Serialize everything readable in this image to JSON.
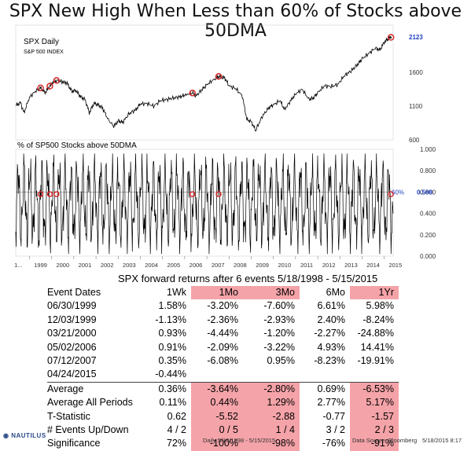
{
  "title": "SPX New High When Less than 60% of Stocks above 50DMA",
  "chart_data": [
    {
      "type": "line",
      "label": "SPX Daily",
      "sublabel": "S&P 500 INDEX",
      "ylim": [
        600,
        2300
      ],
      "yticks": [
        "2123",
        "1600",
        "1100",
        "600"
      ],
      "last_value_label": "2123",
      "x": [
        1998.38,
        1998.6,
        1998.75,
        1999.0,
        1999.3,
        1999.5,
        1999.7,
        1999.93,
        2000.05,
        2000.22,
        2000.5,
        2000.7,
        2000.9,
        2001.1,
        2001.3,
        2001.5,
        2001.7,
        2001.9,
        2002.1,
        2002.3,
        2002.55,
        2002.8,
        2003.0,
        2003.2,
        2003.5,
        2003.8,
        2004.0,
        2004.3,
        2004.6,
        2004.9,
        2005.2,
        2005.5,
        2005.8,
        2006.0,
        2006.33,
        2006.5,
        2006.8,
        2007.0,
        2007.3,
        2007.53,
        2007.8,
        2008.0,
        2008.3,
        2008.6,
        2008.8,
        2009.0,
        2009.2,
        2009.5,
        2009.8,
        2010.0,
        2010.3,
        2010.5,
        2010.8,
        2011.0,
        2011.3,
        2011.6,
        2011.8,
        2012.0,
        2012.3,
        2012.6,
        2012.9,
        2013.2,
        2013.5,
        2013.8,
        2014.0,
        2014.3,
        2014.6,
        2014.8,
        2015.0,
        2015.2,
        2015.32
      ],
      "y": [
        1110,
        1150,
        1000,
        1230,
        1330,
        1370,
        1300,
        1400,
        1450,
        1480,
        1460,
        1440,
        1320,
        1330,
        1240,
        1200,
        1000,
        1140,
        1120,
        1070,
        900,
        800,
        880,
        860,
        990,
        1050,
        1130,
        1140,
        1100,
        1180,
        1200,
        1220,
        1240,
        1260,
        1300,
        1250,
        1350,
        1420,
        1490,
        1540,
        1520,
        1400,
        1360,
        1250,
        900,
        870,
        740,
        950,
        1080,
        1120,
        1180,
        1050,
        1190,
        1280,
        1350,
        1200,
        1220,
        1300,
        1400,
        1390,
        1420,
        1550,
        1620,
        1720,
        1800,
        1880,
        1960,
        1930,
        2050,
        2100,
        2123
      ],
      "markers_x": [
        1999.5,
        1999.92,
        2000.22,
        2006.35,
        2007.53,
        2015.3
      ]
    },
    {
      "type": "line",
      "label": "% of SP500 Stocks above 50DMA",
      "ylim": [
        0,
        1
      ],
      "yticks": [
        "1.000",
        "0.800",
        "0.600",
        "0.400",
        "0.200",
        "0.000"
      ],
      "reference_label": "60%",
      "reference_value": 0.6,
      "last_value_label": "0.598",
      "x_ticks": [
        "1...",
        "1999",
        "2000",
        "2001",
        "2002",
        "2003",
        "2004",
        "2005",
        "2006",
        "2007",
        "2008",
        "2009",
        "2010",
        "2011",
        "2012",
        "2013",
        "2014",
        "2015"
      ],
      "markers_x": [
        1999.5,
        1999.92,
        2000.22,
        2006.35,
        2007.53,
        2015.3
      ]
    }
  ],
  "table": {
    "title": "SPX forward returns after 6 events 5/18/1998 - 5/15/2015",
    "headers": [
      "Event Dates",
      "1Wk",
      "1Mo",
      "3Mo",
      "6Mo",
      "1Yr"
    ],
    "rows": [
      [
        "06/30/1999",
        "1.58%",
        "-3.20%",
        "-7.60%",
        "6.61%",
        "5.98%"
      ],
      [
        "12/03/1999",
        "-1.13%",
        "-2.36%",
        "-2.93%",
        "2.40%",
        "-8.24%"
      ],
      [
        "03/21/2000",
        "0.93%",
        "-4.44%",
        "-1.20%",
        "-2.27%",
        "-24.88%"
      ],
      [
        "05/02/2006",
        "0.91%",
        "-2.09%",
        "-3.22%",
        "4.93%",
        "14.41%"
      ],
      [
        "07/12/2007",
        "0.35%",
        "-6.08%",
        "0.95%",
        "-8.23%",
        "-19.91%"
      ],
      [
        "04/24/2015",
        "-0.44%",
        "",
        "",
        "",
        ""
      ]
    ],
    "stats": [
      [
        "Average",
        "0.36%",
        "-3.64%",
        "-2.80%",
        "0.69%",
        "-6.53%"
      ],
      [
        "Average All Periods",
        "0.11%",
        "0.44%",
        "1.29%",
        "2.77%",
        "5.17%"
      ],
      [
        "T-Statistic",
        "0.62",
        "-5.52",
        "-2.88",
        "-0.77",
        "-1.57"
      ],
      [
        "# Events Up/Down",
        "4 / 2",
        "0 / 5",
        "1 / 4",
        "3 / 2",
        "2 / 3"
      ],
      [
        "Significance",
        "72%",
        "-100%",
        "-98%",
        "-76%",
        "-91%"
      ]
    ]
  },
  "footer": {
    "logo": "NAUTILUS",
    "left": "Daily    5/18/1998 - 5/15/2015",
    "source": "Data Source: Bloomberg",
    "date": "5/18/2015 8:17"
  },
  "colors": {
    "highlight": "#f4a3a8",
    "marker": "#d62728",
    "value_label": "#1f3fbf",
    "line": "#000000"
  }
}
